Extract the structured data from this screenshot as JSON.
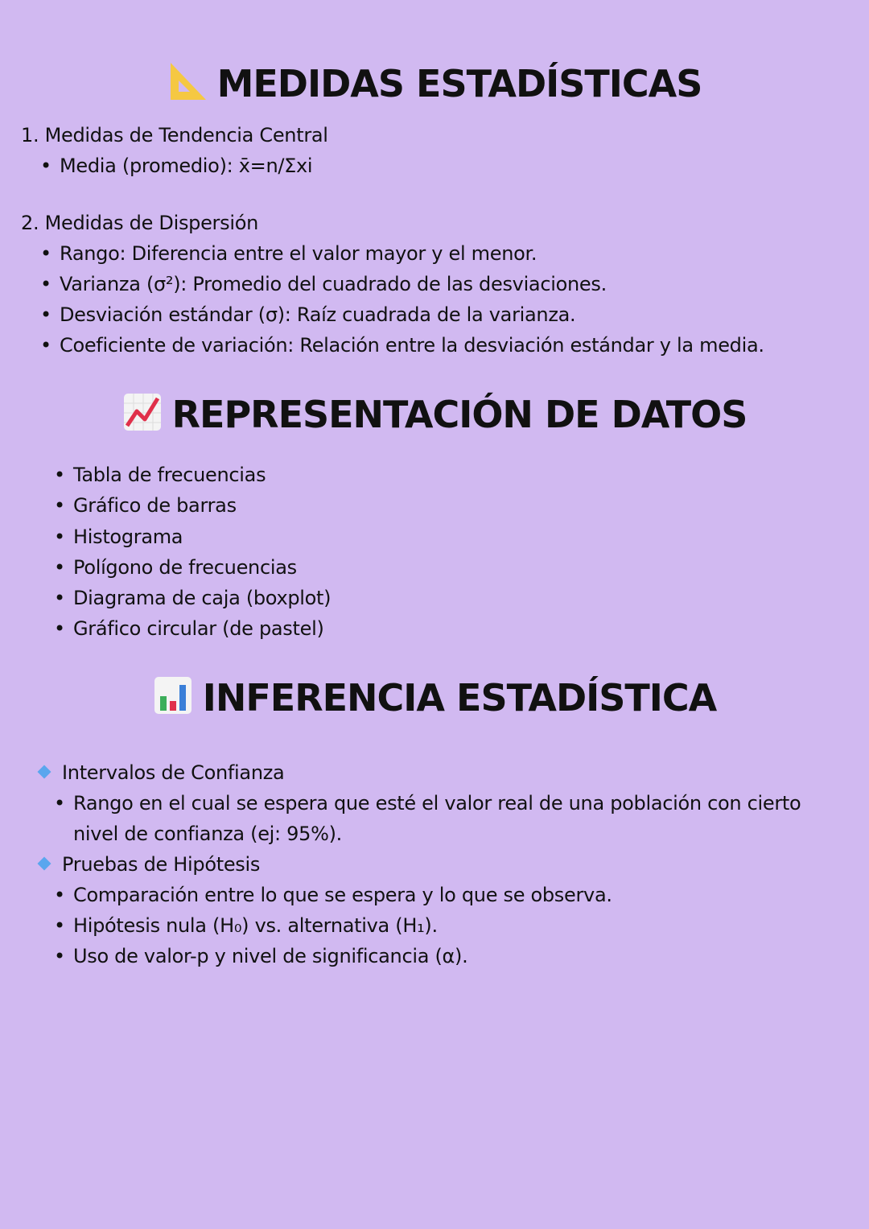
{
  "section1": {
    "title": "MEDIDAS ESTADÍSTICAS",
    "icon": "triangular-ruler-icon",
    "sub1": "1. Medidas de Tendencia Central",
    "sub1_items": [
      "Media (promedio):   x̄=n/Σxi"
    ],
    "sub2": "2. Medidas de Dispersión",
    "sub2_items": [
      "Rango: Diferencia entre el valor mayor y el menor.",
      "Varianza (σ²): Promedio del cuadrado de las desviaciones.",
      "Desviación estándar (σ): Raíz cuadrada de la varianza.",
      "Coeficiente de variación: Relación entre la desviación estándar y la media."
    ]
  },
  "section2": {
    "title": "REPRESENTACIÓN DE DATOS",
    "icon": "chart-increasing-icon",
    "items": [
      "Tabla de frecuencias",
      "Gráfico de barras",
      "Histograma",
      "Polígono de frecuencias",
      "Diagrama de caja (boxplot)",
      "Gráfico circular (de pastel)"
    ]
  },
  "section3": {
    "title": "INFERENCIA ESTADÍSTICA",
    "icon": "bar-chart-icon",
    "g1": "Intervalos de Confianza",
    "g1_items": [
      "Rango en el cual se espera que esté el valor real de una población con cierto",
      "nivel de confianza (ej: 95%)."
    ],
    "g2": "Pruebas de Hipótesis",
    "g2_items": [
      "Comparación entre lo que se espera y lo que se observa.",
      "Hipótesis nula (H₀) vs. alternativa (H₁).",
      "Uso de valor-p y nivel de significancia (α)."
    ]
  },
  "colors": {
    "background": "#d1b9f1",
    "diamond": "#5aa6ee",
    "ruler": "#f5c842"
  }
}
